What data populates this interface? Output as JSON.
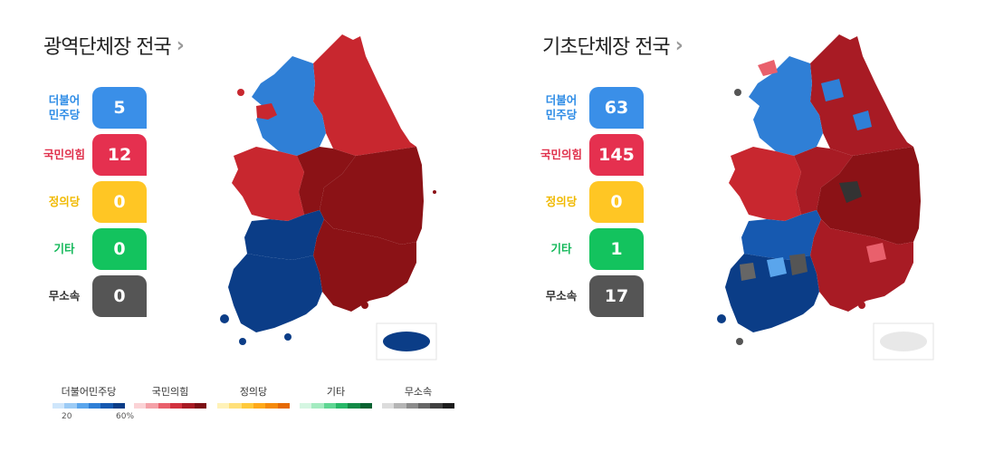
{
  "left": {
    "title": "광역단체장 전국",
    "rows": [
      {
        "label_lines": [
          "더불어",
          "민주당"
        ],
        "value": "5",
        "label_color": "#2e8ce6",
        "box_color": "#3a8fe8"
      },
      {
        "label_lines": [
          "국민의힘"
        ],
        "value": "12",
        "label_color": "#e0314c",
        "box_color": "#e5304f"
      },
      {
        "label_lines": [
          "정의당"
        ],
        "value": "0",
        "label_color": "#f0b900",
        "box_color": "#ffc624"
      },
      {
        "label_lines": [
          "기타"
        ],
        "value": "0",
        "label_color": "#14b85a",
        "box_color": "#13c35e"
      },
      {
        "label_lines": [
          "무소속"
        ],
        "value": "0",
        "label_color": "#333333",
        "box_color": "#555555"
      }
    ]
  },
  "right": {
    "title": "기초단체장 전국",
    "rows": [
      {
        "label_lines": [
          "더불어",
          "민주당"
        ],
        "value": "63",
        "label_color": "#2e8ce6",
        "box_color": "#3a8fe8"
      },
      {
        "label_lines": [
          "국민의힘"
        ],
        "value": "145",
        "label_color": "#e0314c",
        "box_color": "#e5304f"
      },
      {
        "label_lines": [
          "정의당"
        ],
        "value": "0",
        "label_color": "#f0b900",
        "box_color": "#ffc624"
      },
      {
        "label_lines": [
          "기타"
        ],
        "value": "1",
        "label_color": "#14b85a",
        "box_color": "#13c35e"
      },
      {
        "label_lines": [
          "무소속"
        ],
        "value": "17",
        "label_color": "#333333",
        "box_color": "#555555"
      }
    ]
  },
  "legend": {
    "items": [
      {
        "label": "더불어민주당",
        "colors": [
          "#cfe6fb",
          "#9ccbf5",
          "#5aa5ec",
          "#2f7fd6",
          "#1659b0",
          "#0b3d87"
        ]
      },
      {
        "label": "국민의힘",
        "colors": [
          "#fbd3d6",
          "#f4a1a8",
          "#e9606c",
          "#d2323f",
          "#a81b24",
          "#7c0f15"
        ]
      },
      {
        "label": "정의당",
        "colors": [
          "#fff2b8",
          "#ffe07a",
          "#ffc93b",
          "#ffa91a",
          "#f58a0b",
          "#e56a05"
        ]
      },
      {
        "label": "기타",
        "colors": [
          "#d5f6e2",
          "#a3ebc0",
          "#5fd693",
          "#27b868",
          "#138a47",
          "#0a6231"
        ]
      },
      {
        "label": "무소속",
        "colors": [
          "#dcdcdc",
          "#b5b5b5",
          "#8c8c8c",
          "#666666",
          "#404040",
          "#1c1c1c"
        ]
      }
    ],
    "scale_min": "20",
    "scale_max": "60%"
  },
  "map_colors": {
    "dem_light": "#2f7fd6",
    "dem_dark": "#0b3d87",
    "ppp_mid": "#c8272f",
    "ppp_dark": "#8b1216",
    "ind_dark": "#333333",
    "jeju_empty": "#e8e8e8"
  }
}
